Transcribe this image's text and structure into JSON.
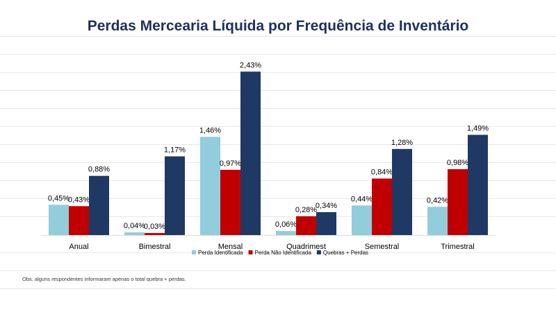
{
  "title": "Perdas Mercearia Líquida por Frequência de Inventário",
  "note": "Obs. alguns respondentes informaram apenas  o total quebra + perdas.",
  "chart_data": {
    "type": "bar",
    "title": "Perdas Mercearia Líquida por Frequência de Inventário",
    "categories": [
      "Anual",
      "Bimestral",
      "Mensal",
      "Quadrimest",
      "Semestral",
      "Trimestral"
    ],
    "series": [
      {
        "name": "Perda Identificada",
        "color": "#92cddc",
        "values": [
          0.45,
          0.04,
          1.46,
          0.06,
          0.44,
          0.42
        ],
        "labels": [
          "0,45%",
          "0,04%",
          "1,46%",
          "0,06%",
          "0,44%",
          "0,42%"
        ]
      },
      {
        "name": "Perda Não Identificada",
        "color": "#c00000",
        "values": [
          0.43,
          0.03,
          0.97,
          0.28,
          0.84,
          0.98
        ],
        "labels": [
          "0,43%",
          "0,03%",
          "0,97%",
          "0,28%",
          "0,84%",
          "0,98%"
        ]
      },
      {
        "name": "Quebras + Perdas",
        "color": "#1f3864",
        "values": [
          0.88,
          1.17,
          2.43,
          0.34,
          1.28,
          1.49
        ],
        "labels": [
          "0,88%",
          "1,17%",
          "2,43%",
          "0,34%",
          "1,28%",
          "1,49%"
        ]
      }
    ],
    "unit": "%",
    "ylim": [
      0,
      2.5
    ],
    "legend_position": "bottom",
    "grid": false
  }
}
